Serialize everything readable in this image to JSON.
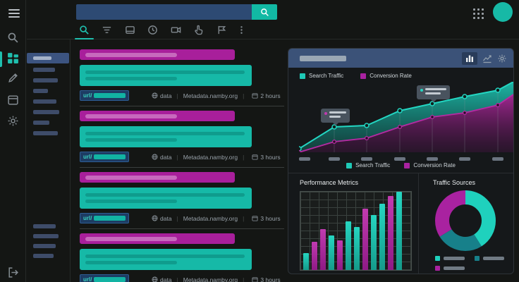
{
  "topbar": {
    "search_value": "",
    "search_placeholder": ""
  },
  "tabs": [
    {
      "name": "search",
      "active": true
    },
    {
      "name": "filters",
      "active": false
    },
    {
      "name": "calendar",
      "active": false
    },
    {
      "name": "history",
      "active": false
    },
    {
      "name": "videos",
      "active": false
    },
    {
      "name": "gestures",
      "active": false
    },
    {
      "name": "flags",
      "active": false
    },
    {
      "name": "more",
      "active": false
    }
  ],
  "sidebar": {
    "rail_items": [
      "search",
      "dashboard",
      "edit",
      "calendar",
      "settings",
      "logout"
    ],
    "active_rail_item": "dashboard",
    "selected_filter_inner_width": 26,
    "filters_top_widths": [
      31,
      35,
      21,
      33,
      37,
      23,
      35
    ],
    "filters_bottom_widths": [
      32,
      36,
      32,
      29
    ]
  },
  "results": [
    {
      "url_prefix": "url/",
      "source_label": "data",
      "domain": "Metadata.namby.org",
      "age": "2 hours"
    },
    {
      "url_prefix": "url/",
      "source_label": "data",
      "domain": "Metadata.namby.org",
      "age": "3 hours"
    },
    {
      "url_prefix": "url/",
      "source_label": "data",
      "domain": "Metadata.namby.org",
      "age": "3 hours"
    },
    {
      "url_prefix": "url/",
      "source_label": "data",
      "domain": "Metadata.namby.org",
      "age": "3 hours"
    }
  ],
  "analytics": {
    "legend": [
      {
        "label": "Search Traffic",
        "color": "#1fc9b6"
      },
      {
        "label": "Conversion Rate",
        "color": "#a922a0"
      }
    ],
    "performance_title": "Performance Metrics",
    "traffic_title": "Traffic Sources",
    "accent_teal": "#1fc9b6",
    "accent_magenta": "#a922a0",
    "header_color": "#3b5278"
  },
  "chart_data": [
    {
      "type": "area",
      "title": "",
      "legend": [
        "Search Traffic",
        "Conversion Rate"
      ],
      "x": [
        0,
        50,
        96,
        143,
        189,
        235,
        282,
        304
      ],
      "series": [
        {
          "name": "Search Traffic",
          "color": "#23d6c2",
          "values": [
            5,
            36,
            38,
            59,
            69,
            79,
            88,
            100
          ]
        },
        {
          "name": "Conversion Rate",
          "color": "#b52ba3",
          "values": [
            0,
            15,
            20,
            36,
            50,
            56,
            67,
            82
          ]
        }
      ],
      "points_at": [
        0,
        1,
        2,
        3,
        4,
        5,
        6
      ],
      "gridlines_at": [
        1,
        2,
        3,
        4,
        5,
        6
      ],
      "tick_count": 7,
      "ylim": [
        0,
        100
      ],
      "tooltips": [
        {
          "point_index": 1,
          "dot_color": "#c13bb0",
          "line_widths": [
            24,
            16
          ]
        },
        {
          "point_index": 4,
          "dot_color": "#26d6c1",
          "line_widths": [
            30,
            22
          ]
        }
      ]
    },
    {
      "type": "bar",
      "title": "Performance Metrics",
      "values": [
        22,
        36,
        52,
        44,
        38,
        62,
        55,
        78,
        70,
        85,
        95,
        100
      ],
      "colors": [
        "teal",
        "magenta",
        "magenta",
        "teal",
        "magenta",
        "teal",
        "teal",
        "magenta",
        "teal",
        "teal",
        "magenta",
        "teal"
      ],
      "ylim": [
        0,
        100
      ]
    },
    {
      "type": "donut",
      "title": "Traffic Sources",
      "slices": [
        {
          "value": 41,
          "color": "#1fd1bd"
        },
        {
          "value": 25,
          "color": "#17808a"
        },
        {
          "value": 34,
          "color": "#a922a0"
        }
      ]
    }
  ]
}
